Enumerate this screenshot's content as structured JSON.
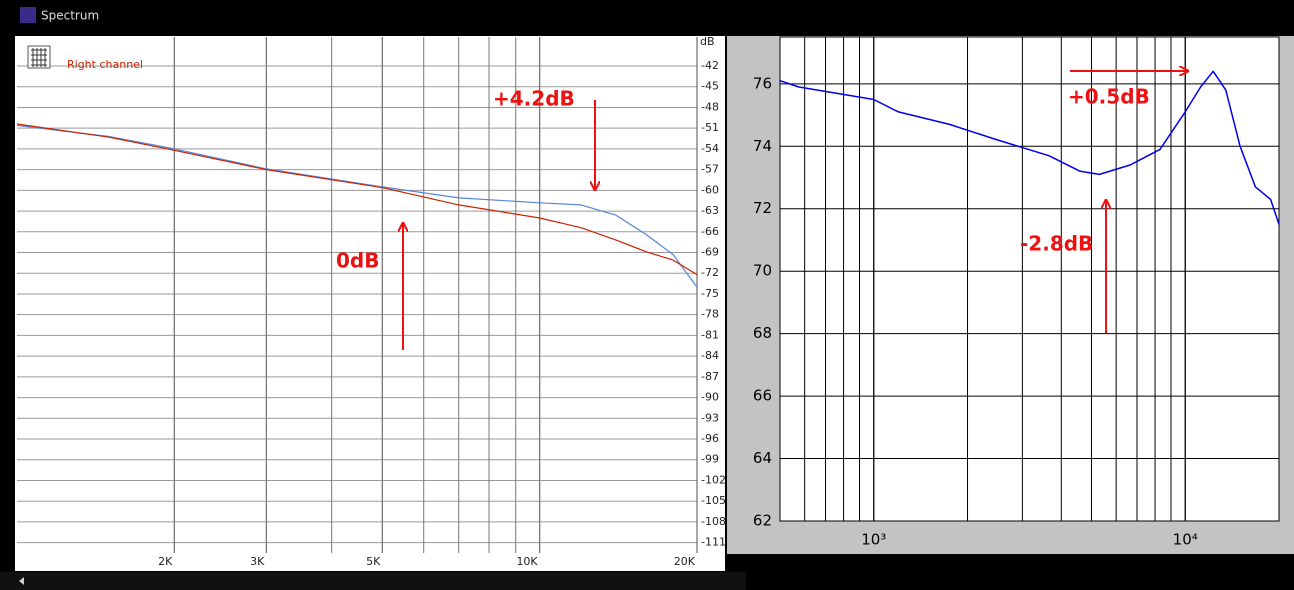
{
  "window_title": "Spectrum",
  "chart_data": [
    {
      "type": "line",
      "y_axis_label": "dB",
      "xscale": "log",
      "xlim": [
        1000,
        20000
      ],
      "ylim": [
        -112.5,
        -37.8
      ],
      "xticks": [
        {
          "value": 2000,
          "label": "2K"
        },
        {
          "value": 3000,
          "label": "3K"
        },
        {
          "value": 5000,
          "label": "5K"
        },
        {
          "value": 10000,
          "label": "10K"
        },
        {
          "value": 20000,
          "label": "20K"
        }
      ],
      "xminorticks": [
        4000,
        6000,
        7000,
        8000,
        9000
      ],
      "yticks": [
        -42,
        -45,
        -48,
        -51,
        -54,
        -57,
        -60,
        -63,
        -66,
        -69,
        -72,
        -75,
        -78,
        -81,
        -84,
        -87,
        -90,
        -93,
        -96,
        -99,
        -102,
        -105,
        -108,
        -111
      ],
      "grid": true,
      "x": [
        1000,
        1500,
        2000,
        3000,
        5000,
        7000,
        10000,
        12000,
        14000,
        16000,
        18000,
        20000
      ],
      "series": [
        {
          "color": "#5b86d6",
          "values": [
            -50.6,
            -52.2,
            -54.0,
            -56.9,
            -59.5,
            -61.1,
            -61.8,
            -62.1,
            -63.6,
            -66.4,
            -69.3,
            -74.0
          ]
        },
        {
          "name": "Right channel",
          "color": "#cc2200",
          "values": [
            -50.4,
            -52.3,
            -54.2,
            -57.0,
            -59.6,
            -62.1,
            -64.0,
            -65.4,
            -67.2,
            -68.9,
            -70.1,
            -72.2
          ]
        }
      ],
      "annotations": [
        {
          "text": "+4.2dB"
        },
        {
          "text": "0dB"
        }
      ]
    },
    {
      "type": "line",
      "xscale": "log",
      "xlim": [
        500,
        20000
      ],
      "ylim": [
        62,
        77.5
      ],
      "xticks": [
        {
          "value": 1000,
          "label": "10³"
        },
        {
          "value": 10000,
          "label": "10⁴"
        }
      ],
      "xminorticks": [
        500,
        600,
        700,
        800,
        900,
        2000,
        3000,
        4000,
        5000,
        6000,
        7000,
        8000,
        9000,
        20000
      ],
      "yticks": [
        62,
        64,
        66,
        68,
        70,
        72,
        74,
        76
      ],
      "grid": true,
      "x": [
        500,
        575,
        1000,
        1200,
        1750,
        2500,
        3650,
        4600,
        5300,
        6650,
        8300,
        10000,
        11200,
        12300,
        13500,
        15000,
        16800,
        18800,
        20000
      ],
      "series": [
        {
          "color": "#0000ee",
          "values": [
            76.1,
            75.9,
            75.5,
            75.1,
            74.7,
            74.2,
            73.7,
            73.2,
            73.1,
            73.4,
            73.9,
            75.1,
            75.9,
            76.4,
            75.8,
            74.0,
            72.7,
            72.3,
            71.5
          ]
        }
      ],
      "annotations": [
        {
          "text": "+0.5dB"
        },
        {
          "text": "-2.8dB"
        }
      ]
    }
  ]
}
